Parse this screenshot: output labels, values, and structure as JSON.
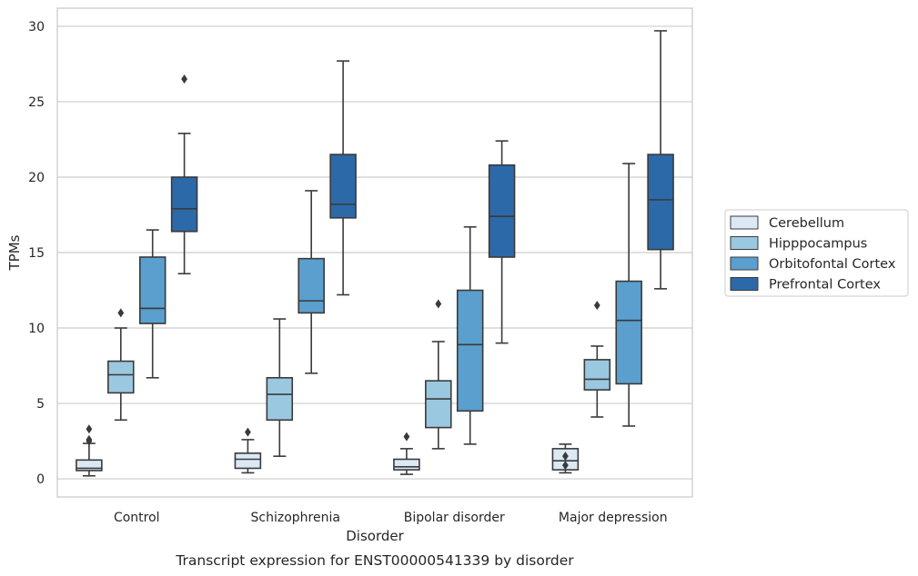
{
  "caption": "Transcript expression for ENST00000541339 by disorder",
  "chart_data": {
    "type": "boxplot",
    "title": "",
    "xlabel": "Disorder",
    "ylabel": "TPMs",
    "ylim": [
      -1.2,
      31.2
    ],
    "yticks": [
      0,
      5,
      10,
      15,
      20,
      25,
      30
    ],
    "grid": "horizontal",
    "legend_position": "right",
    "categories": [
      "Control",
      "Schizophrenia",
      "Bipolar disorder",
      "Major depression"
    ],
    "series": [
      {
        "name": "Cerebellum",
        "color": "#dbe9f6",
        "boxes": [
          {
            "whislo": 0.2,
            "q1": 0.55,
            "med": 0.7,
            "q3": 1.25,
            "whishi": 2.35,
            "fliers": [
              2.5,
              2.6,
              3.3
            ]
          },
          {
            "whislo": 0.4,
            "q1": 0.7,
            "med": 1.3,
            "q3": 1.7,
            "whishi": 2.6,
            "fliers": [
              3.1
            ]
          },
          {
            "whislo": 0.3,
            "q1": 0.6,
            "med": 0.8,
            "q3": 1.3,
            "whishi": 2.0,
            "fliers": [
              2.8
            ]
          },
          {
            "whislo": 0.4,
            "q1": 0.6,
            "med": 1.2,
            "q3": 2.0,
            "whishi": 2.3,
            "fliers": [
              0.9,
              1.5
            ]
          }
        ]
      },
      {
        "name": "Hipppocampus",
        "color": "#9ac8e0",
        "boxes": [
          {
            "whislo": 3.9,
            "q1": 5.7,
            "med": 6.9,
            "q3": 7.8,
            "whishi": 10.0,
            "fliers": [
              11.0
            ]
          },
          {
            "whislo": 1.5,
            "q1": 3.9,
            "med": 5.6,
            "q3": 6.7,
            "whishi": 10.6,
            "fliers": []
          },
          {
            "whislo": 2.0,
            "q1": 3.4,
            "med": 5.3,
            "q3": 6.5,
            "whishi": 9.1,
            "fliers": [
              11.6
            ]
          },
          {
            "whislo": 4.1,
            "q1": 5.9,
            "med": 6.6,
            "q3": 7.9,
            "whishi": 8.8,
            "fliers": [
              11.5
            ]
          }
        ]
      },
      {
        "name": "Orbitofontal Cortex",
        "color": "#5a9fcd",
        "boxes": [
          {
            "whislo": 6.7,
            "q1": 10.3,
            "med": 11.3,
            "q3": 14.7,
            "whishi": 16.5,
            "fliers": []
          },
          {
            "whislo": 7.0,
            "q1": 11.0,
            "med": 11.8,
            "q3": 14.6,
            "whishi": 19.1,
            "fliers": []
          },
          {
            "whislo": 2.3,
            "q1": 4.5,
            "med": 8.9,
            "q3": 12.5,
            "whishi": 16.7,
            "fliers": []
          },
          {
            "whislo": 3.5,
            "q1": 6.3,
            "med": 10.5,
            "q3": 13.1,
            "whishi": 20.9,
            "fliers": []
          }
        ]
      },
      {
        "name": "Prefrontal Cortex",
        "color": "#2c69a9",
        "boxes": [
          {
            "whislo": 13.6,
            "q1": 16.4,
            "med": 17.9,
            "q3": 20.0,
            "whishi": 22.9,
            "fliers": [
              26.5
            ]
          },
          {
            "whislo": 12.2,
            "q1": 17.3,
            "med": 18.2,
            "q3": 21.5,
            "whishi": 27.7,
            "fliers": []
          },
          {
            "whislo": 9.0,
            "q1": 14.7,
            "med": 17.4,
            "q3": 20.8,
            "whishi": 22.4,
            "fliers": []
          },
          {
            "whislo": 12.6,
            "q1": 15.2,
            "med": 18.5,
            "q3": 21.5,
            "whishi": 29.7,
            "fliers": []
          }
        ]
      }
    ]
  }
}
